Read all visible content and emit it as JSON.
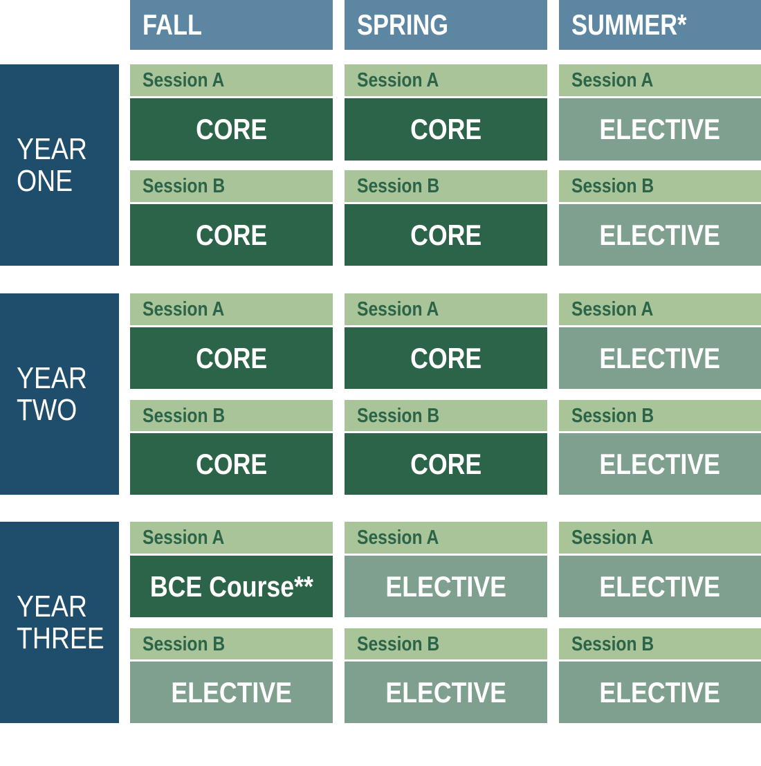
{
  "seasons": {
    "fall": "FALL",
    "spring": "SPRING",
    "summer": "SUMMER*"
  },
  "years": {
    "one": "YEAR\nONE",
    "two": "YEAR\nTWO",
    "three": "YEAR\nTHREE"
  },
  "sessions": {
    "a": "Session A",
    "b": "Session B"
  },
  "grid": {
    "y1": {
      "a": {
        "fall": "CORE",
        "spring": "CORE",
        "summer": "ELECTIVE"
      },
      "b": {
        "fall": "CORE",
        "spring": "CORE",
        "summer": "ELECTIVE"
      }
    },
    "y2": {
      "a": {
        "fall": "CORE",
        "spring": "CORE",
        "summer": "ELECTIVE"
      },
      "b": {
        "fall": "CORE",
        "spring": "CORE",
        "summer": "ELECTIVE"
      }
    },
    "y3": {
      "a": {
        "fall": "BCE Course**",
        "spring": "ELECTIVE",
        "summer": "ELECTIVE"
      },
      "b": {
        "fall": "ELECTIVE",
        "spring": "ELECTIVE",
        "summer": "ELECTIVE"
      }
    }
  },
  "colors": {
    "season_header": "#5d86a3",
    "year_label": "#1f4e6d",
    "session_bar": "#a8c498",
    "core": "#2b6448",
    "elective": "#7fa08f"
  }
}
